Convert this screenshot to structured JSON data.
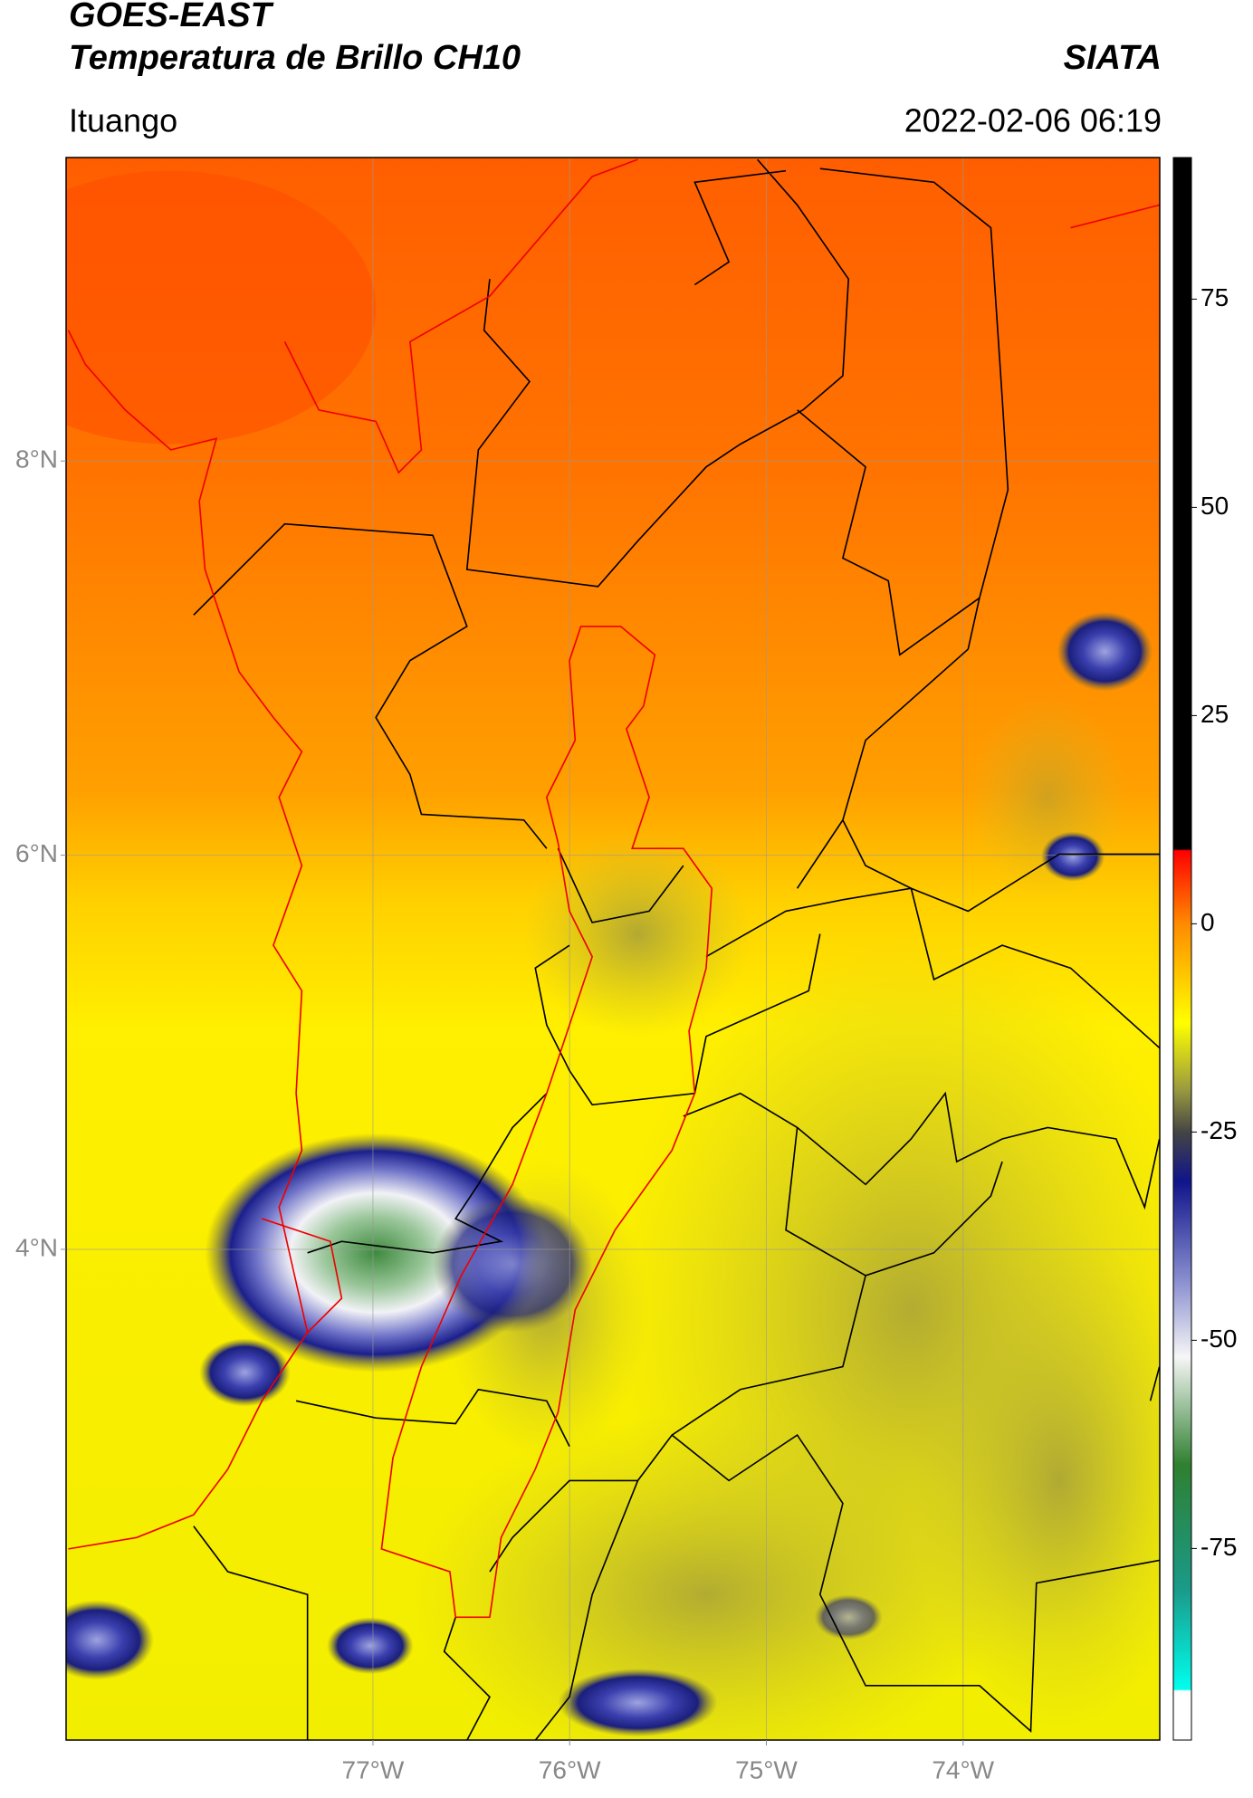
{
  "header": {
    "title": "GOES-EAST",
    "subtitle": "Temperatura de Brillo CH10",
    "brand": "SIATA",
    "location": "Ituango",
    "datetime": "2022-02-06 06:19"
  },
  "map": {
    "latlim": [
      1.51,
      9.54
    ],
    "lonlim": [
      -78.56,
      -73.0
    ],
    "grid": true,
    "lat_ticks": [
      {
        "value": 8,
        "label": "8°N"
      },
      {
        "value": 6,
        "label": "6°N"
      },
      {
        "value": 4,
        "label": "4°N"
      }
    ],
    "lon_ticks": [
      {
        "value": -77,
        "label": "77°W"
      },
      {
        "value": -76,
        "label": "76°W"
      },
      {
        "value": -75,
        "label": "75°W"
      },
      {
        "value": -74,
        "label": "74°W"
      }
    ],
    "colorbar": {
      "lim": [
        -98,
        92
      ],
      "ticks": [
        75,
        50,
        25,
        0,
        -25,
        -50,
        -75
      ]
    }
  }
}
